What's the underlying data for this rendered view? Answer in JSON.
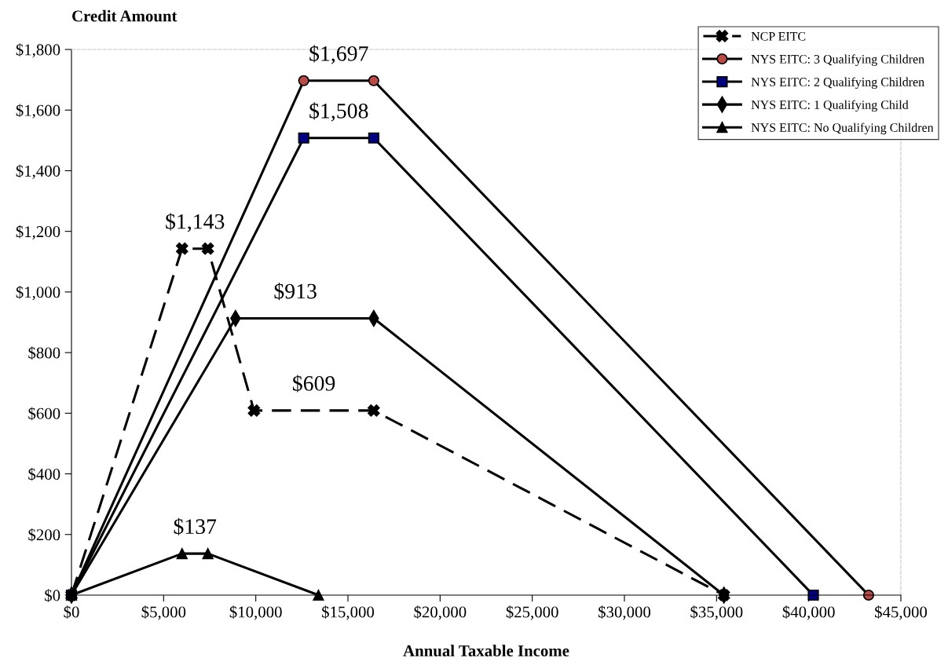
{
  "chart_data": {
    "type": "line",
    "xlabel": "Annual Taxable Income",
    "ylabel": "Credit Amount",
    "xlim": [
      0,
      45000
    ],
    "xticks": [
      {
        "value": 0,
        "label": "$0"
      },
      {
        "value": 5000,
        "label": "$5,000"
      },
      {
        "value": 10000,
        "label": "$10,000"
      },
      {
        "value": 15000,
        "label": "$15,000"
      },
      {
        "value": 20000,
        "label": "$20,000"
      },
      {
        "value": 25000,
        "label": "$25,000"
      },
      {
        "value": 30000,
        "label": "$30,000"
      },
      {
        "value": 35000,
        "label": "$35,000"
      },
      {
        "value": 40000,
        "label": "$40,000"
      },
      {
        "value": 45000,
        "label": "$45,000"
      }
    ],
    "ylim": [
      0,
      1800
    ],
    "yticks": [
      {
        "value": 0,
        "label": "$0"
      },
      {
        "value": 200,
        "label": "$200"
      },
      {
        "value": 400,
        "label": "$400"
      },
      {
        "value": 600,
        "label": "$600"
      },
      {
        "value": 800,
        "label": "$800"
      },
      {
        "value": 1000,
        "label": "$1,000"
      },
      {
        "value": 1200,
        "label": "$1,200"
      },
      {
        "value": 1400,
        "label": "$1,400"
      },
      {
        "value": 1600,
        "label": "$1,600"
      },
      {
        "value": 1800,
        "label": "$1,800"
      }
    ],
    "grid": false,
    "legend": "top right",
    "series": [
      {
        "name": "NCP EITC",
        "color": "#000000",
        "marker": "cross",
        "line_style": "dashed",
        "x": [
          0,
          6000,
          7400,
          9900,
          16400,
          35400
        ],
        "values": [
          0,
          1143,
          1143,
          609,
          609,
          0
        ],
        "value_labels": [
          null,
          "$1,143",
          null,
          "$609",
          null,
          null
        ]
      },
      {
        "name": "NYS EITC: 3 Qualifying Children",
        "color": "#b84a48",
        "marker": "circle",
        "line_style": "solid",
        "x": [
          0,
          12600,
          16400,
          43250
        ],
        "values": [
          0,
          1697,
          1697,
          0
        ],
        "value_labels": [
          null,
          "$1,697",
          null,
          null
        ]
      },
      {
        "name": "NYS EITC: 2 Qualifying Children",
        "color": "#000080",
        "marker": "square",
        "line_style": "solid",
        "x": [
          0,
          12600,
          16400,
          40250
        ],
        "values": [
          0,
          1508,
          1508,
          0
        ],
        "value_labels": [
          null,
          "$1,508",
          null,
          null
        ]
      },
      {
        "name": "NYS EITC: 1 Qualifying Child",
        "color": "#000000",
        "marker": "diamond",
        "line_style": "solid",
        "x": [
          0,
          8900,
          16400,
          35400
        ],
        "values": [
          0,
          913,
          913,
          0
        ],
        "value_labels": [
          null,
          "$913",
          null,
          null
        ]
      },
      {
        "name": "NYS EITC: No Qualifying Children",
        "color": "#000000",
        "marker": "triangle",
        "line_style": "solid",
        "x": [
          0,
          6000,
          7400,
          13400
        ],
        "values": [
          0,
          137,
          137,
          0
        ],
        "value_labels": [
          null,
          "$137",
          null,
          null
        ]
      }
    ]
  }
}
